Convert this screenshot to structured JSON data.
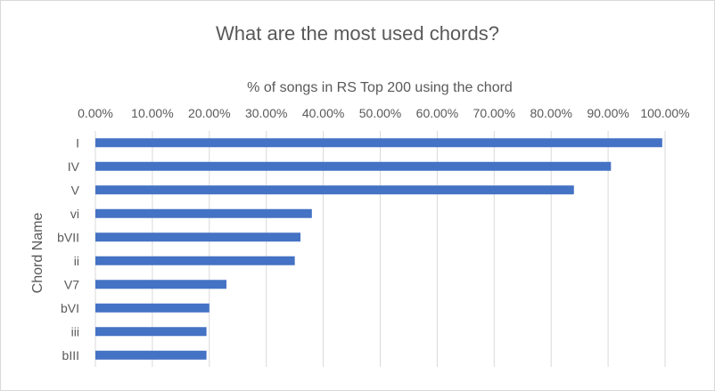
{
  "chart_data": {
    "type": "bar",
    "orientation": "horizontal",
    "title": "What are the most used chords?",
    "xlabel": "% of songs in RS Top 200 using the chord",
    "ylabel": "Chord Name",
    "x_axis_position": "top",
    "xlim": [
      0,
      100
    ],
    "xticks": [
      "0.00%",
      "10.00%",
      "20.00%",
      "30.00%",
      "40.00%",
      "50.00%",
      "60.00%",
      "70.00%",
      "80.00%",
      "90.00%",
      "100.00%"
    ],
    "categories": [
      "I",
      "IV",
      "V",
      "vi",
      "bVII",
      "ii",
      "V7",
      "bVI",
      "iii",
      "bIII"
    ],
    "values": [
      99.5,
      90.5,
      84,
      38,
      36,
      35,
      23,
      20,
      19.5,
      19.5
    ],
    "grid": true,
    "legend": "none",
    "bar_color": "#4472C4",
    "grid_color": "#d9d9d9"
  }
}
